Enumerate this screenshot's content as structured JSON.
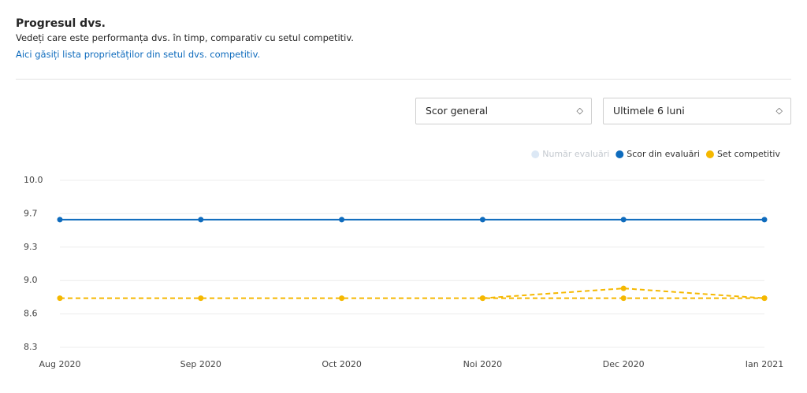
{
  "header": {
    "title": "Progresul dvs.",
    "subtitle": "Vedeți care este performanța dvs. în timp, comparativ cu setul competitiv.",
    "link": "Aici găsiți lista proprietăților din setul dvs. competitiv."
  },
  "controls": {
    "metric": "Scor general",
    "period": "Ultimele 6 luni"
  },
  "chart_data": {
    "type": "line",
    "legend": [
      {
        "name": "Număr evaluări",
        "color": "#dce8f5"
      },
      {
        "name": "Scor din evaluări",
        "color": "#0e6bbd"
      },
      {
        "name": "Set competitiv",
        "color": "#f5b800"
      }
    ],
    "categories": [
      "Aug 2020",
      "Sep 2020",
      "Oct 2020",
      "Noi 2020",
      "Dec 2020",
      "Ian 2021"
    ],
    "series": [
      {
        "name": "Scor din evaluări",
        "color": "#0e6bbd",
        "dashed": false,
        "values": [
          9.6,
          9.6,
          9.6,
          9.6,
          9.6,
          9.6
        ]
      },
      {
        "name": "Set competitiv",
        "color": "#f5b800",
        "dashed": true,
        "values": [
          8.8,
          8.8,
          8.8,
          8.8,
          8.8,
          8.8
        ]
      },
      {
        "color": "#f5b800",
        "dashed": true,
        "values": [
          null,
          null,
          null,
          8.8,
          8.9,
          8.8
        ]
      }
    ],
    "ylim": [
      8.3,
      10.0
    ],
    "yticks": [
      8.3,
      {
        "value": 8.64,
        "label": "8.6"
      },
      {
        "value": 8.98,
        "label": "9.0"
      },
      {
        "value": 9.32,
        "label": "9.3"
      },
      {
        "value": 9.66,
        "label": "9.7"
      },
      {
        "value": 10.0,
        "label": "10.0"
      }
    ],
    "grid": true
  }
}
